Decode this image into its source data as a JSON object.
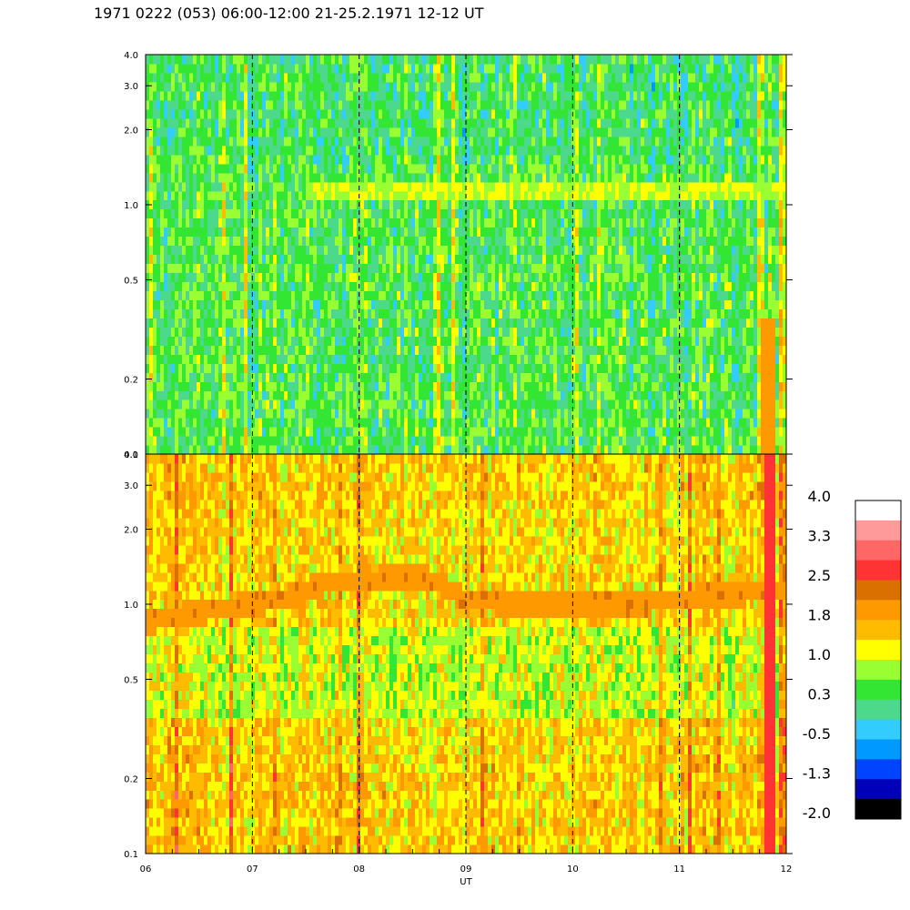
{
  "title": "1971 0222 (053) 06:00-12:00 21-25.2.1971  12-12 UT",
  "chart_data": {
    "type": "heatmap",
    "title": "1971 0222 (053) 06:00-12:00 21-25.2.1971  12-12 UT",
    "xlabel": "UT",
    "xlim": [
      6,
      12
    ],
    "x_ticks": [
      "06",
      "07",
      "08",
      "09",
      "10",
      "11",
      "12"
    ],
    "x_dashed_lines": [
      7,
      8,
      9,
      10,
      11
    ],
    "y_scale": "log",
    "panels": [
      {
        "id": "top",
        "ylim": [
          0.1,
          4.0
        ],
        "y_ticks": [
          0.1,
          0.2,
          0.5,
          1.0,
          2.0,
          3.0,
          4.0
        ],
        "y_tick_labels": [
          "0.1",
          "0.2",
          "0.5",
          "1.0",
          "2.0",
          "3.0",
          "4.0"
        ],
        "base_level": 0.4,
        "band": {
          "y": 1.15,
          "x_range": [
            7.5,
            12.0
          ],
          "level": 1.0
        }
      },
      {
        "id": "bottom",
        "ylim": [
          0.1,
          4.0
        ],
        "y_ticks": [
          0.1,
          0.2,
          0.5,
          1.0,
          2.0,
          3.0,
          4.0
        ],
        "y_tick_labels": [
          "0.1",
          "0.2",
          "0.5",
          "1.0",
          "2.0",
          "3.0",
          "4.0"
        ],
        "base_level": 1.4,
        "band_points": [
          [
            6.0,
            0.85
          ],
          [
            7.3,
            1.05
          ],
          [
            7.6,
            1.2
          ],
          [
            8.0,
            1.25
          ],
          [
            8.6,
            1.3
          ],
          [
            9.0,
            1.05
          ],
          [
            9.5,
            1.0
          ],
          [
            10.5,
            1.0
          ],
          [
            11.0,
            1.05
          ],
          [
            12.0,
            1.15
          ]
        ],
        "band_level": 2.0
      }
    ],
    "colorbar": {
      "labels": [
        "4.0",
        "3.3",
        "2.5",
        "1.8",
        "1.0",
        "0.3",
        "-0.5",
        "-1.3",
        "-2.0"
      ],
      "colors": [
        "#ffffff",
        "#ff9a9a",
        "#ff6666",
        "#ff3333",
        "#d97000",
        "#ff9900",
        "#ffbb00",
        "#ffff00",
        "#99ff33",
        "#33e633",
        "#4dd98c",
        "#33ccff",
        "#0099ff",
        "#0044ff",
        "#0000bb",
        "#000000"
      ]
    }
  }
}
